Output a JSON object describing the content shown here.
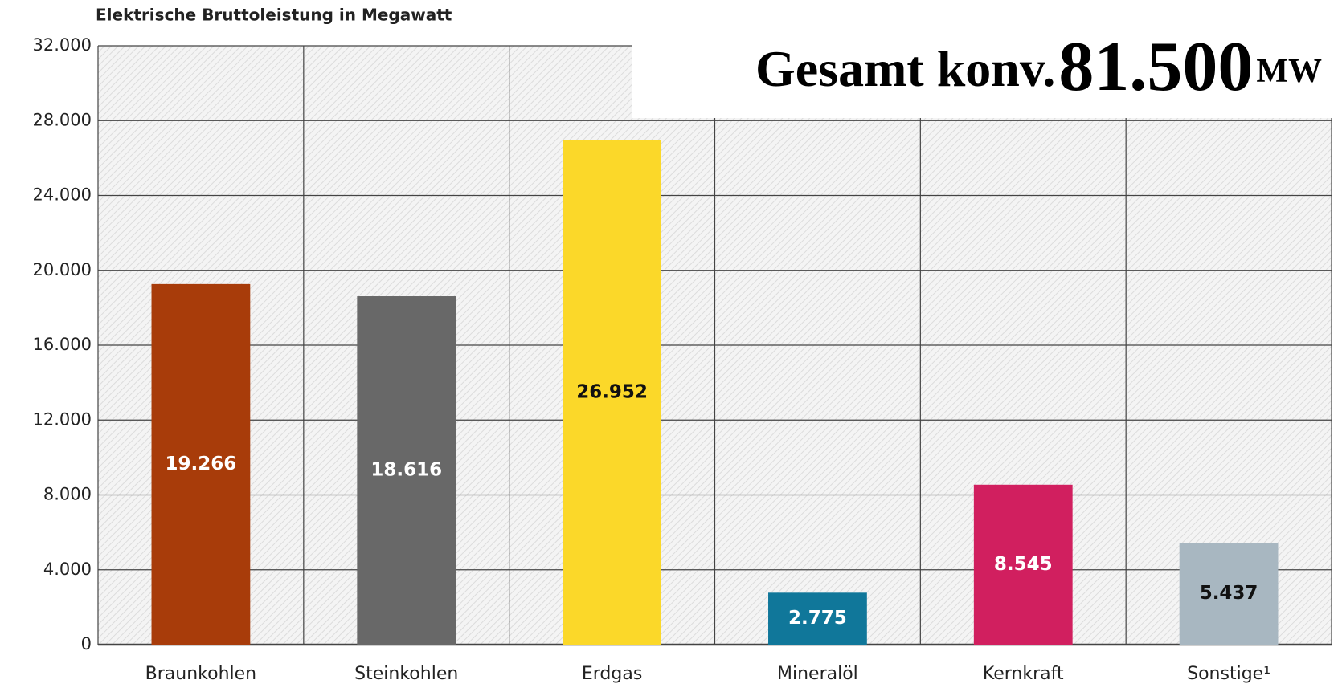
{
  "chart_data": {
    "type": "bar",
    "title": "Elektrische Bruttoleistung in Megawatt",
    "annotation": {
      "prefix": "Gesamt konv.",
      "total": "81.500",
      "unit": "MW"
    },
    "categories": [
      "Braunkohlen",
      "Steinkohlen",
      "Erdgas",
      "Mineralöl",
      "Kernkraft",
      "Sonstige¹"
    ],
    "values": [
      19266,
      18616,
      26952,
      2775,
      8545,
      5437
    ],
    "value_labels": [
      "19.266",
      "18.616",
      "26.952",
      "2.775",
      "8.545",
      "5.437"
    ],
    "colors": [
      "#a83c0a",
      "#686868",
      "#fbd829",
      "#10779a",
      "#d11f5f",
      "#a8b7c1"
    ],
    "label_colors": [
      "#ffffff",
      "#ffffff",
      "#111111",
      "#ffffff",
      "#ffffff",
      "#111111"
    ],
    "ylim": [
      0,
      32000
    ],
    "yticks": [
      0,
      {
        "value": 4000,
        "label": "4.000"
      },
      {
        "value": 8000,
        "label": "8.000"
      },
      {
        "value": 12000,
        "label": "12.000"
      },
      {
        "value": 16000,
        "label": "16.000"
      },
      {
        "value": 20000,
        "label": "20.000"
      },
      {
        "value": 24000,
        "label": "24.000"
      },
      {
        "value": 28000,
        "label": "28.000"
      },
      {
        "value": 32000,
        "label": {
          "value": 32000,
          "label": "32.000"
        }
      }
    ],
    "grid": true
  }
}
